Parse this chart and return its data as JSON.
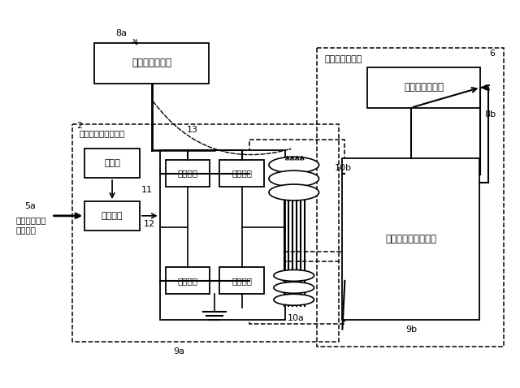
{
  "bg_color": "#ffffff",
  "fig_width": 6.4,
  "fig_height": 4.78,
  "labels": {
    "8a": "8a",
    "battery_send": "送り側バッテリ",
    "6": "6",
    "portable": "ポータブル機器",
    "battery_recv": "受け側バッテリ",
    "8b": "8b",
    "2": "2",
    "unit_label": "非接触充電ユニット",
    "oscillator": "発振器",
    "control": "制御素子",
    "11": "11",
    "12": "12",
    "5a": "5a",
    "signal_line1": "非接触充電用",
    "signal_line2": "制御信号",
    "sw1": "スイッチ",
    "sw2": "スイッチ",
    "sw3": "スイッチ",
    "sw4": "スイッチ",
    "9a": "9a",
    "10a": "10a",
    "10b": "10b",
    "13": "13",
    "recv_block": "受け側電源ブロック",
    "9b": "9b"
  }
}
